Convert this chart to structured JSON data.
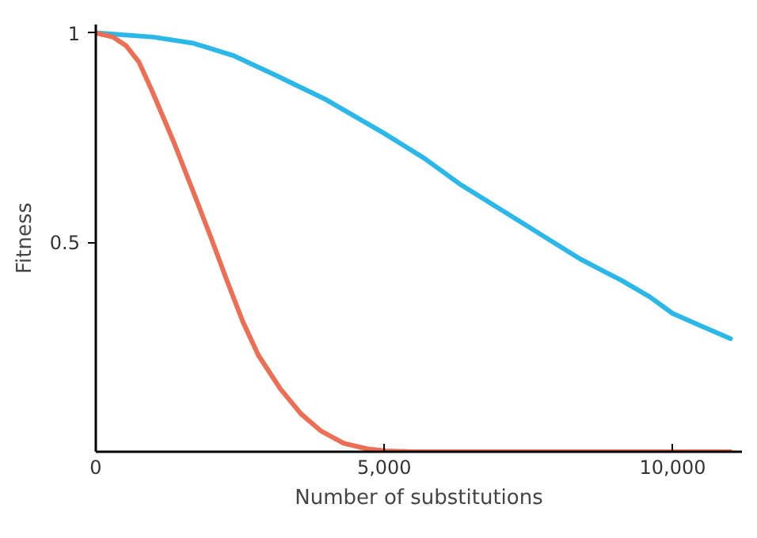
{
  "chart_data": {
    "type": "line",
    "xlabel": "Number of substitutions",
    "ylabel": "Fitness",
    "xlim": [
      0,
      11200
    ],
    "ylim": [
      0,
      1.02
    ],
    "xticks": [
      0,
      {
        "value": 5000,
        "label": "5,000"
      },
      {
        "value": 10000,
        "label": "10,000"
      }
    ],
    "yticks": [
      0.5,
      1
    ],
    "grid": false,
    "marker": "none",
    "line_style": "solid",
    "series": [
      {
        "color": "#2bb8e8",
        "x": [
          0,
          1000,
          1700,
          2400,
          3100,
          4000,
          5000,
          5700,
          6300,
          7000,
          7700,
          8400,
          9100,
          9600,
          10000,
          10500,
          11000
        ],
        "values": [
          1.0,
          0.99,
          0.975,
          0.945,
          0.9,
          0.84,
          0.76,
          0.7,
          0.64,
          0.58,
          0.52,
          0.46,
          0.41,
          0.37,
          0.33,
          0.3,
          0.27
        ]
      },
      {
        "color": "#ec6f55",
        "x": [
          0,
          300,
          520,
          750,
          980,
          1350,
          1720,
          2000,
          2270,
          2550,
          2820,
          3200,
          3560,
          3900,
          4300,
          4700,
          5040,
          5500,
          6000,
          8000,
          11000
        ],
        "values": [
          1.0,
          0.99,
          0.97,
          0.93,
          0.86,
          0.74,
          0.61,
          0.51,
          0.41,
          0.31,
          0.23,
          0.15,
          0.09,
          0.05,
          0.02,
          0.007,
          0.002,
          0,
          0,
          0,
          0
        ]
      }
    ]
  }
}
